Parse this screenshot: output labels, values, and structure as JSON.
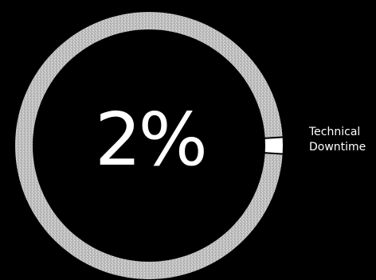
{
  "chart_data": {
    "type": "pie",
    "style": "donut",
    "center_label": "2%",
    "slices": [
      {
        "label": "Technical Downtime",
        "label_lines": [
          "Technical",
          "Downtime"
        ],
        "value": 2,
        "color": "#ffffff"
      },
      {
        "label": "",
        "value": 98,
        "color": "#c9c9c9"
      }
    ],
    "label_placement": "right of slice"
  },
  "colors": {
    "background": "#000000",
    "ring": "#c9c9c9",
    "highlight": "#ffffff",
    "text": "#ffffff"
  }
}
